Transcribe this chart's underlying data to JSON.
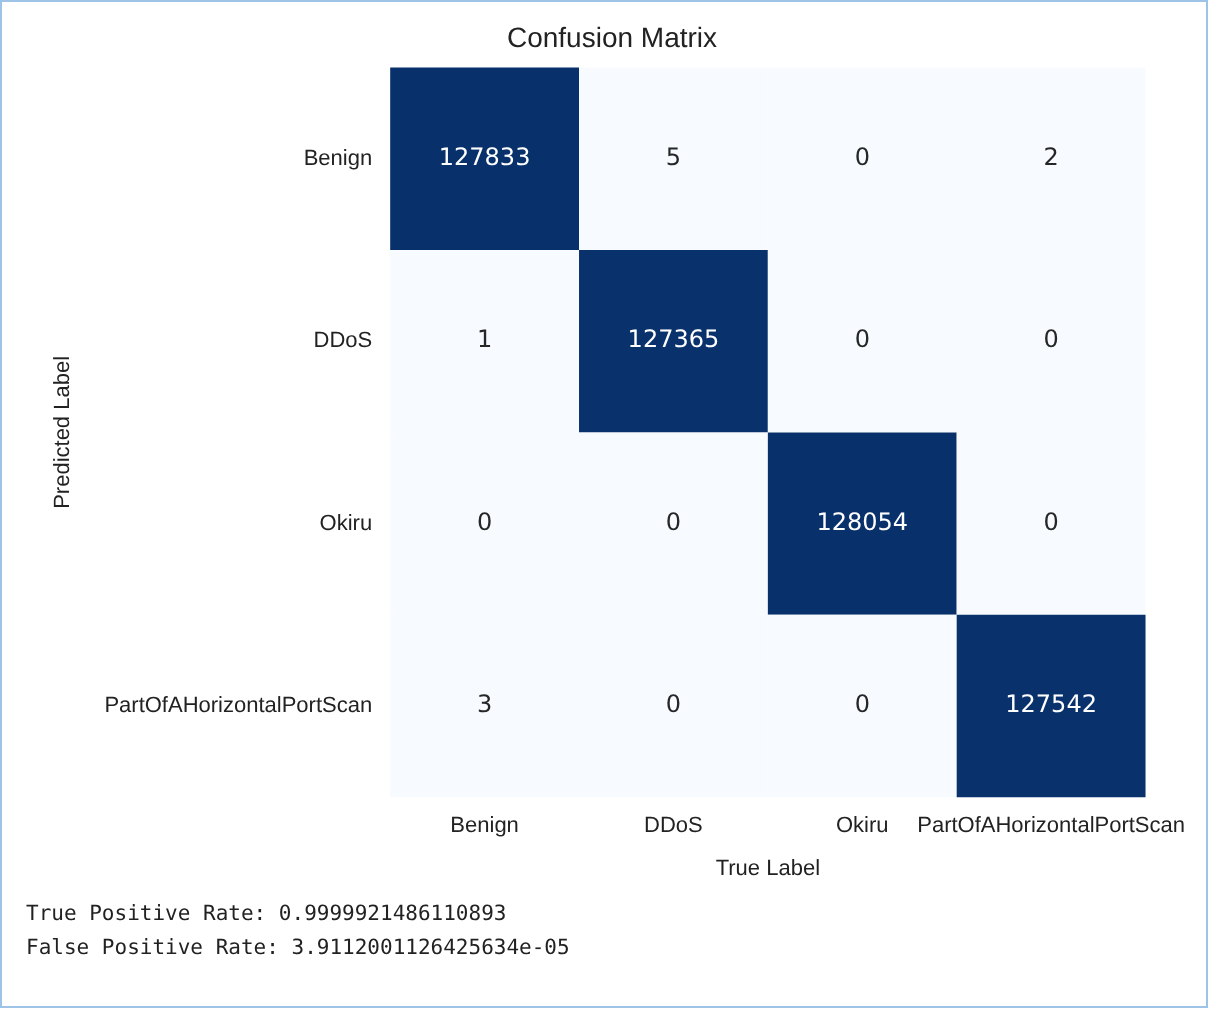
{
  "chart_data": {
    "type": "heatmap",
    "title": "Confusion Matrix",
    "xlabel": "True Label",
    "ylabel": "Predicted Label",
    "categories": [
      "Benign",
      "DDoS",
      "Okiru",
      "PartOfAHorizontalPortScan"
    ],
    "y_categories": [
      "Benign",
      "DDoS",
      "Okiru",
      "PartOfAHorizontalPortScan"
    ],
    "cells": [
      [
        127833,
        5,
        0,
        2
      ],
      [
        1,
        127365,
        0,
        0
      ],
      [
        0,
        0,
        128054,
        0
      ],
      [
        3,
        0,
        0,
        127542
      ]
    ],
    "data_labels": true,
    "annotations": [
      "True Positive Rate: 0.9999921486110893",
      "False Positive Rate: 3.9112001126425634e-05"
    ]
  }
}
